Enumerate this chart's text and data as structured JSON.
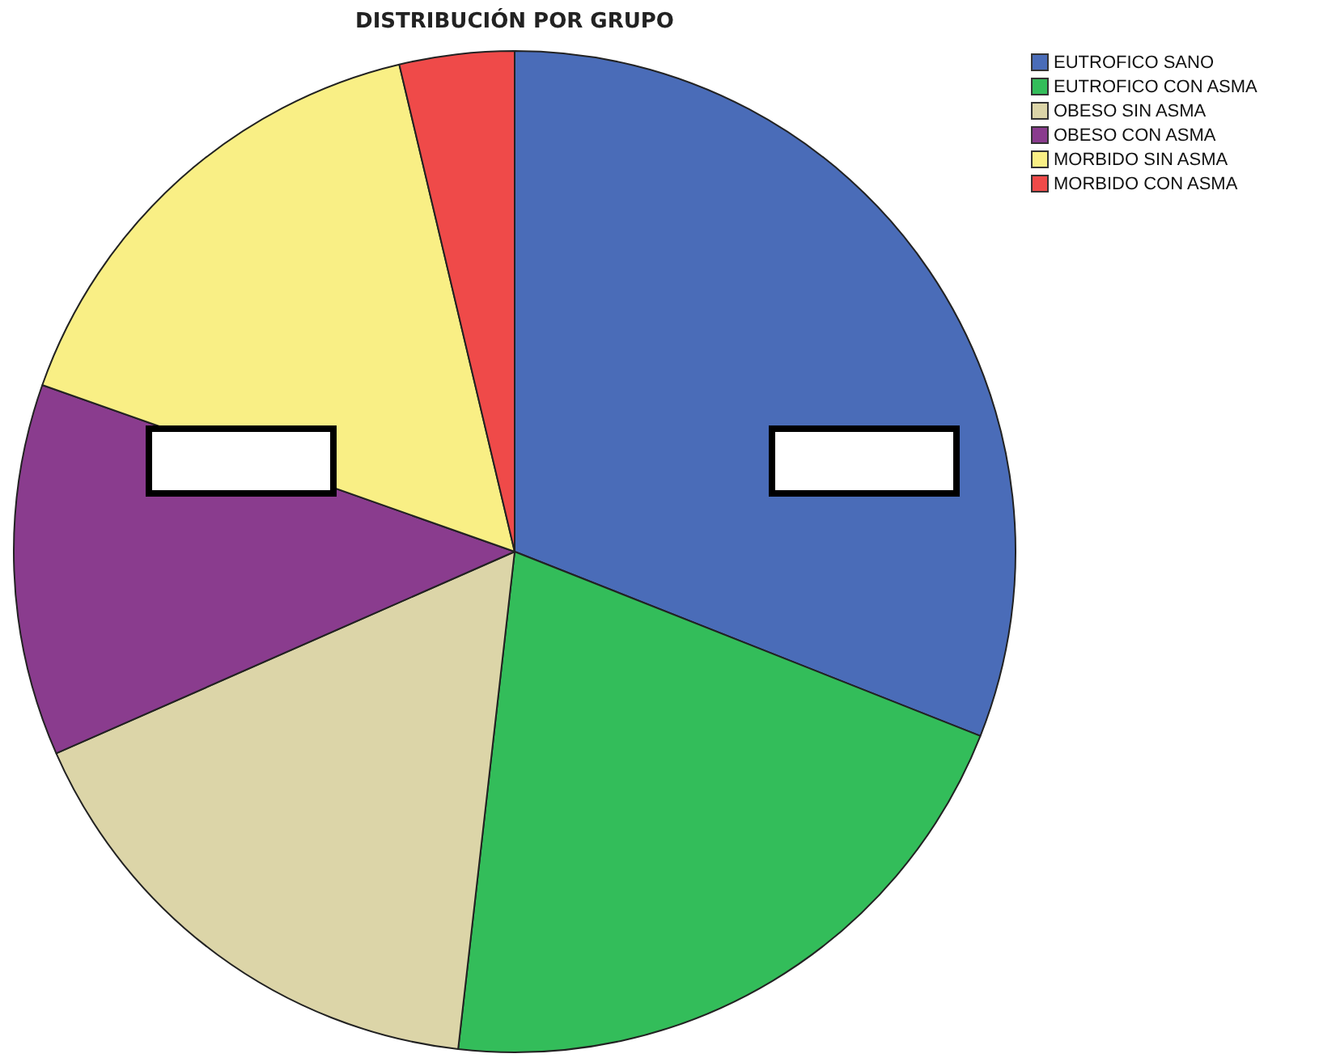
{
  "chart_data": {
    "type": "pie",
    "title": "DISTRIBUCIÓN POR GRUPO",
    "categories": [
      "EUTROFICO SANO",
      "EUTROFICO CON ASMA",
      "OBESO SIN ASMA",
      "OBESO CON ASMA",
      "MORBIDO SIN ASMA",
      "MORBIDO CON ASMA"
    ],
    "values": [
      31.0,
      20.8,
      16.6,
      12.0,
      15.9,
      3.7
    ],
    "colors": [
      "#4a6cb8",
      "#33bd5a",
      "#dcd5a8",
      "#8a3c8e",
      "#f9ef85",
      "#ef4a49"
    ],
    "legend": "top right"
  }
}
